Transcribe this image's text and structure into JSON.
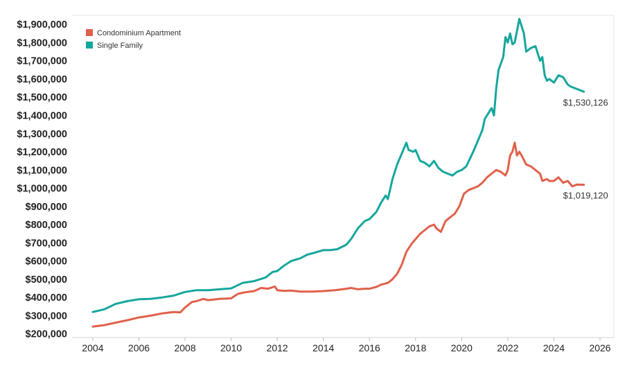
{
  "chart_data": {
    "type": "line",
    "title": "",
    "xlabel": "",
    "ylabel": "",
    "xlim": [
      2003.1,
      2026.6
    ],
    "ylim": [
      180000,
      1950000
    ],
    "x_ticks": [
      2004,
      2006,
      2008,
      2010,
      2012,
      2014,
      2016,
      2018,
      2020,
      2022,
      2024,
      2026
    ],
    "x_tick_labels": [
      "2004",
      "2006",
      "2008",
      "2010",
      "2012",
      "2014",
      "2016",
      "2018",
      "2020",
      "2022",
      "2024",
      "2026"
    ],
    "y_ticks": [
      200000,
      300000,
      400000,
      500000,
      600000,
      700000,
      800000,
      900000,
      1000000,
      1100000,
      1200000,
      1300000,
      1400000,
      1500000,
      1600000,
      1700000,
      1800000,
      1900000
    ],
    "y_tick_labels": [
      "$200,000",
      "$300,000",
      "$400,000",
      "$500,000",
      "$600,000",
      "$700,000",
      "$800,000",
      "$900,000",
      "$1,000,000",
      "$1,100,000",
      "$1,200,000",
      "$1,300,000",
      "$1,400,000",
      "$1,500,000",
      "$1,600,000",
      "$1,700,000",
      "$1,800,000",
      "$1,900,000"
    ],
    "grid": false,
    "legend": "top-left",
    "series": [
      {
        "name": "Condominium Apartment",
        "color": "#e0604a",
        "end_label": "$1,019,120",
        "x": [
          2004.0,
          2004.5,
          2005.0,
          2005.5,
          2006.0,
          2006.5,
          2007.0,
          2007.5,
          2007.8,
          2008.0,
          2008.3,
          2008.5,
          2008.8,
          2009.0,
          2009.5,
          2010.0,
          2010.3,
          2010.6,
          2011.0,
          2011.3,
          2011.6,
          2011.9,
          2012.0,
          2012.3,
          2012.6,
          2013.0,
          2013.5,
          2014.0,
          2014.5,
          2015.0,
          2015.2,
          2015.5,
          2015.8,
          2016.0,
          2016.3,
          2016.5,
          2016.8,
          2017.0,
          2017.2,
          2017.4,
          2017.6,
          2017.8,
          2018.0,
          2018.2,
          2018.4,
          2018.6,
          2018.8,
          2018.9,
          2019.1,
          2019.3,
          2019.5,
          2019.7,
          2019.9,
          2020.1,
          2020.3,
          2020.5,
          2020.7,
          2020.9,
          2021.1,
          2021.3,
          2021.5,
          2021.7,
          2021.9,
          2022.0,
          2022.1,
          2022.2,
          2022.3,
          2022.4,
          2022.5,
          2022.6,
          2022.8,
          2023.0,
          2023.2,
          2023.4,
          2023.5,
          2023.7,
          2023.8,
          2024.0,
          2024.2,
          2024.4,
          2024.6,
          2024.8,
          2025.0,
          2025.3
        ],
        "y": [
          240000,
          248000,
          262000,
          275000,
          290000,
          300000,
          312000,
          320000,
          318000,
          345000,
          375000,
          380000,
          392000,
          385000,
          392000,
          395000,
          420000,
          428000,
          435000,
          452000,
          448000,
          460000,
          440000,
          436000,
          438000,
          432000,
          432000,
          435000,
          440000,
          448000,
          452000,
          445000,
          448000,
          448000,
          458000,
          470000,
          480000,
          500000,
          530000,
          580000,
          650000,
          690000,
          720000,
          750000,
          770000,
          790000,
          800000,
          780000,
          760000,
          820000,
          840000,
          860000,
          900000,
          970000,
          990000,
          1000000,
          1010000,
          1030000,
          1060000,
          1080000,
          1100000,
          1090000,
          1070000,
          1100000,
          1180000,
          1200000,
          1250000,
          1180000,
          1200000,
          1180000,
          1130000,
          1120000,
          1100000,
          1080000,
          1040000,
          1050000,
          1040000,
          1040000,
          1060000,
          1030000,
          1040000,
          1010000,
          1020000,
          1019120
        ]
      },
      {
        "name": "Single Family",
        "color": "#15a69c",
        "end_label": "$1,530,126",
        "x": [
          2004.0,
          2004.5,
          2005.0,
          2005.5,
          2006.0,
          2006.5,
          2007.0,
          2007.5,
          2008.0,
          2008.5,
          2009.0,
          2009.5,
          2010.0,
          2010.5,
          2011.0,
          2011.5,
          2011.8,
          2012.0,
          2012.3,
          2012.6,
          2013.0,
          2013.3,
          2013.6,
          2014.0,
          2014.3,
          2014.6,
          2015.0,
          2015.2,
          2015.5,
          2015.8,
          2016.0,
          2016.3,
          2016.5,
          2016.7,
          2016.8,
          2017.0,
          2017.2,
          2017.4,
          2017.6,
          2017.7,
          2017.9,
          2018.0,
          2018.2,
          2018.4,
          2018.6,
          2018.8,
          2019.0,
          2019.2,
          2019.4,
          2019.6,
          2019.8,
          2020.0,
          2020.2,
          2020.5,
          2020.7,
          2020.9,
          2021.0,
          2021.2,
          2021.3,
          2021.4,
          2021.5,
          2021.6,
          2021.8,
          2021.9,
          2022.0,
          2022.1,
          2022.2,
          2022.3,
          2022.5,
          2022.7,
          2022.8,
          2023.0,
          2023.2,
          2023.4,
          2023.5,
          2023.6,
          2023.7,
          2023.8,
          2024.0,
          2024.2,
          2024.4,
          2024.6,
          2024.7,
          2024.9,
          2025.1,
          2025.3
        ],
        "y": [
          320000,
          335000,
          365000,
          380000,
          390000,
          392000,
          400000,
          410000,
          430000,
          440000,
          440000,
          445000,
          450000,
          480000,
          490000,
          510000,
          540000,
          545000,
          575000,
          600000,
          615000,
          635000,
          645000,
          660000,
          660000,
          665000,
          690000,
          720000,
          780000,
          820000,
          830000,
          870000,
          920000,
          960000,
          940000,
          1050000,
          1130000,
          1190000,
          1250000,
          1210000,
          1200000,
          1210000,
          1150000,
          1140000,
          1120000,
          1150000,
          1110000,
          1090000,
          1080000,
          1070000,
          1090000,
          1100000,
          1120000,
          1200000,
          1260000,
          1320000,
          1380000,
          1420000,
          1440000,
          1400000,
          1550000,
          1650000,
          1720000,
          1830000,
          1800000,
          1850000,
          1790000,
          1800000,
          1930000,
          1850000,
          1750000,
          1770000,
          1780000,
          1700000,
          1720000,
          1620000,
          1590000,
          1600000,
          1580000,
          1620000,
          1610000,
          1570000,
          1560000,
          1550000,
          1540000,
          1530126
        ]
      }
    ]
  }
}
